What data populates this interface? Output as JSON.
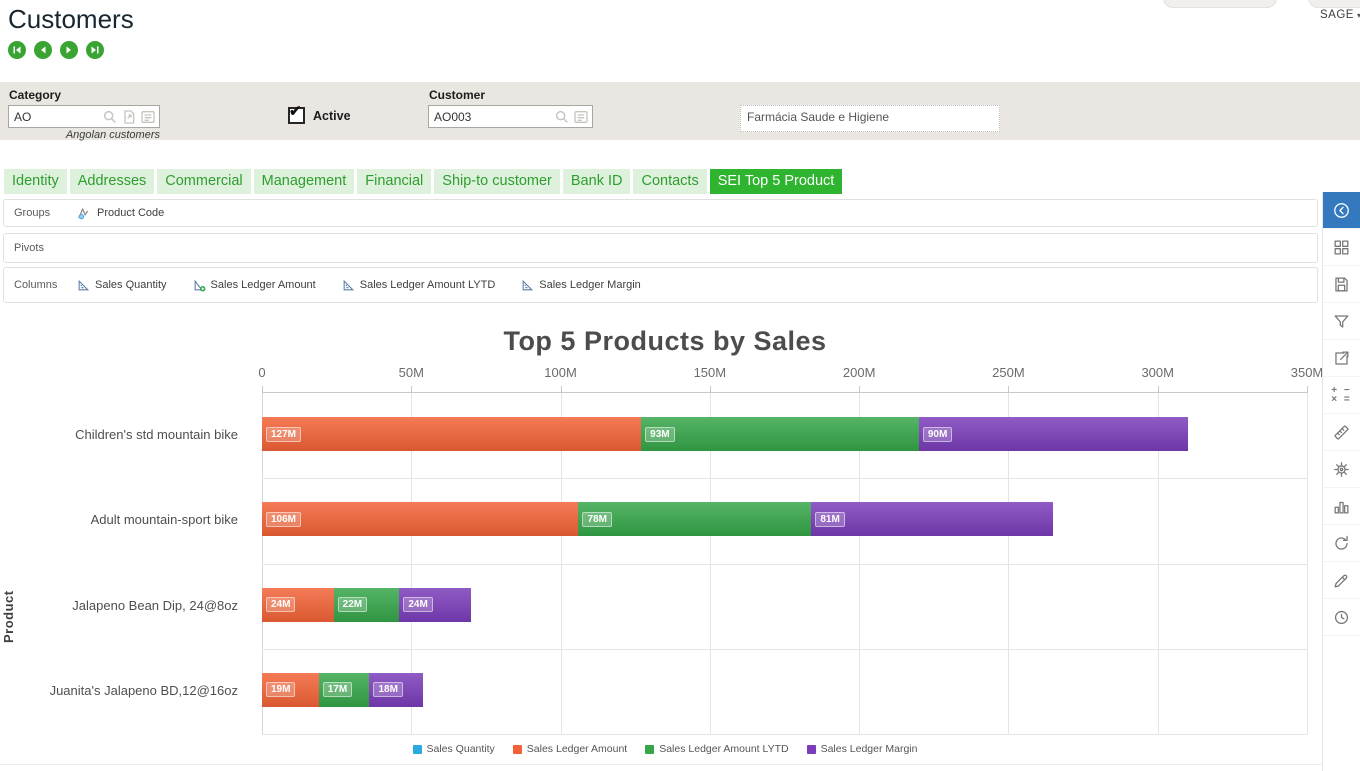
{
  "header": {
    "title": "Customers",
    "brand": "SAGE"
  },
  "filters": {
    "category_label": "Category",
    "category_value": "AO",
    "category_hint": "Angolan customers",
    "active_label": "Active",
    "active_checked": true,
    "customer_label": "Customer",
    "customer_value": "AO003",
    "customer_name": "Farmácia Saude e Higiene"
  },
  "tabs": [
    {
      "label": "Identity"
    },
    {
      "label": "Addresses"
    },
    {
      "label": "Commercial"
    },
    {
      "label": "Management"
    },
    {
      "label": "Financial"
    },
    {
      "label": "Ship-to customer"
    },
    {
      "label": "Bank ID"
    },
    {
      "label": "Contacts"
    },
    {
      "label": "SEI Top 5 Product",
      "active": true
    }
  ],
  "sei_panel": {
    "rows": [
      {
        "label": "Groups",
        "chips": [
          {
            "label": "Product Code",
            "icon": "field-icon"
          }
        ]
      },
      {
        "label": "Pivots",
        "chips": []
      },
      {
        "label": "Columns",
        "chips": [
          {
            "label": "Sales Quantity",
            "icon": "measure-icon"
          },
          {
            "label": "Sales Ledger Amount",
            "icon": "measure-add-icon"
          },
          {
            "label": "Sales Ledger Amount LYTD",
            "icon": "measure-icon"
          },
          {
            "label": "Sales Ledger Margin",
            "icon": "measure-icon"
          }
        ]
      }
    ]
  },
  "chart_data": {
    "type": "bar",
    "orientation": "horizontal",
    "stacked": true,
    "title": "Top 5 Products by Sales",
    "xlabel": "",
    "ylabel": "Product",
    "unit": "M",
    "xlim_m": [
      0,
      350
    ],
    "x_ticks": [
      "0",
      "50M",
      "100M",
      "150M",
      "200M",
      "250M",
      "300M",
      "350M"
    ],
    "grid": true,
    "data_labels": true,
    "legend_position": "bottom",
    "categories": [
      "Children's std mountain bike",
      "Adult mountain-sport bike",
      "Jalapeno Bean Dip, 24@8oz",
      "Juanita's Jalapeno BD,12@16oz"
    ],
    "series": [
      {
        "name": "Sales Quantity",
        "color": "#29abe2",
        "values_m": [
          0,
          0,
          0,
          0
        ]
      },
      {
        "name": "Sales Ledger Amount",
        "color": "#f26236",
        "values_m": [
          127,
          106,
          24,
          19
        ]
      },
      {
        "name": "Sales Ledger Amount LYTD",
        "color": "#35a649",
        "values_m": [
          93,
          78,
          22,
          17
        ]
      },
      {
        "name": "Sales Ledger Margin",
        "color": "#7a3cba",
        "values_m": [
          90,
          81,
          24,
          18
        ]
      }
    ]
  },
  "sidebar": {
    "icons": [
      {
        "name": "collapse-panel-icon",
        "active": true
      },
      {
        "name": "grid-view-icon"
      },
      {
        "name": "save-icon"
      },
      {
        "name": "filter-icon"
      },
      {
        "name": "share-icon"
      },
      {
        "name": "calculator-icon"
      },
      {
        "name": "ruler-icon"
      },
      {
        "name": "settings-icon"
      },
      {
        "name": "bar-chart-icon"
      },
      {
        "name": "refresh-icon"
      },
      {
        "name": "eyedropper-icon"
      },
      {
        "name": "history-icon"
      }
    ]
  }
}
